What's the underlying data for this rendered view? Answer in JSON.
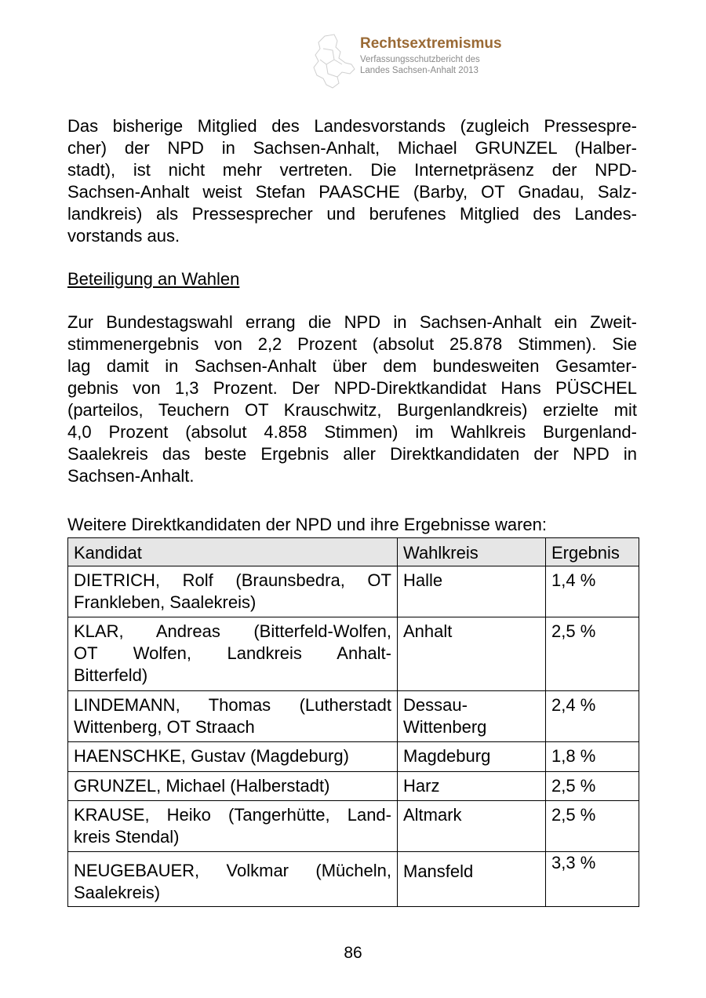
{
  "header": {
    "title": "Rechtsextremismus",
    "subtitle_lines": [
      "Verfassungsschutzbericht des",
      "Landes Sachsen-Anhalt 2013"
    ],
    "title_color": "#9a6a35"
  },
  "paragraph1": [
    "Das bisherige Mitglied des Landesvorstands (zugleich Pressespre-",
    "cher) der NPD in Sachsen-Anhalt, Michael GRUNZEL (Halber-",
    "stadt), ist nicht mehr vertreten. Die Internetpräsenz der NPD-",
    "Sachsen-Anhalt weist Stefan PAASCHE (Barby, OT Gnadau, Salz-",
    "landkreis) als Pressesprecher und berufenes Mitglied des Landes-",
    "vorstands aus."
  ],
  "heading": "Beteiligung an Wahlen",
  "paragraph2": [
    "Zur Bundestagswahl errang die NPD in Sachsen-Anhalt ein Zweit-",
    "stimmenergebnis von 2,2 Prozent (absolut 25.878 Stimmen). Sie",
    "lag damit in Sachsen-Anhalt über dem bundesweiten Gesamter-",
    "gebnis von 1,3 Prozent. Der NPD-Direktkandidat Hans PÜSCHEL",
    "(parteilos, Teuchern OT Krauschwitz, Burgenlandkreis) erzielte mit",
    "4,0 Prozent (absolut 4.858 Stimmen) im Wahlkreis Burgenland-",
    "Saalekreis das beste Ergebnis aller Direktkandidaten der NPD in",
    "Sachsen-Anhalt."
  ],
  "table_intro": "Weitere Direktkandidaten der NPD und ihre Ergebnisse waren:",
  "table": {
    "headers": [
      "Kandidat",
      "Wahlkreis",
      "Ergebnis"
    ],
    "rows": [
      {
        "kandidat": [
          "DIETRICH, Rolf (Braunsbedra, OT",
          "Frankleben, Saalekreis)"
        ],
        "wahlkreis": [
          "Halle"
        ],
        "ergebnis": "1,4 %"
      },
      {
        "kandidat": [
          "KLAR, Andreas (Bitterfeld-Wolfen,",
          "OT Wolfen, Landkreis Anhalt-",
          "Bitterfeld)"
        ],
        "wahlkreis": [
          "Anhalt"
        ],
        "ergebnis": "2,5 %"
      },
      {
        "kandidat": [
          "LINDEMANN, Thomas (Lutherstadt",
          "Wittenberg, OT Straach"
        ],
        "wahlkreis": [
          "Dessau-",
          "Wittenberg"
        ],
        "ergebnis": "2,4 %"
      },
      {
        "kandidat": [
          "HAENSCHKE, Gustav (Magdeburg)"
        ],
        "wahlkreis": [
          "Magdeburg"
        ],
        "ergebnis": "1,8 %"
      },
      {
        "kandidat": [
          "GRUNZEL, Michael (Halberstadt)"
        ],
        "wahlkreis": [
          "Harz"
        ],
        "ergebnis": "2,5 %"
      },
      {
        "kandidat": [
          "KRAUSE, Heiko (Tangerhütte, Land-",
          "kreis Stendal)"
        ],
        "wahlkreis": [
          "Altmark"
        ],
        "ergebnis": "2,5 %"
      },
      {
        "kandidat": [
          "NEUGEBAUER, Volkmar (Mücheln,",
          "Saalekreis)"
        ],
        "wahlkreis": [
          "Mansfeld"
        ],
        "ergebnis": "3,3 %"
      }
    ]
  },
  "page_number": "86"
}
